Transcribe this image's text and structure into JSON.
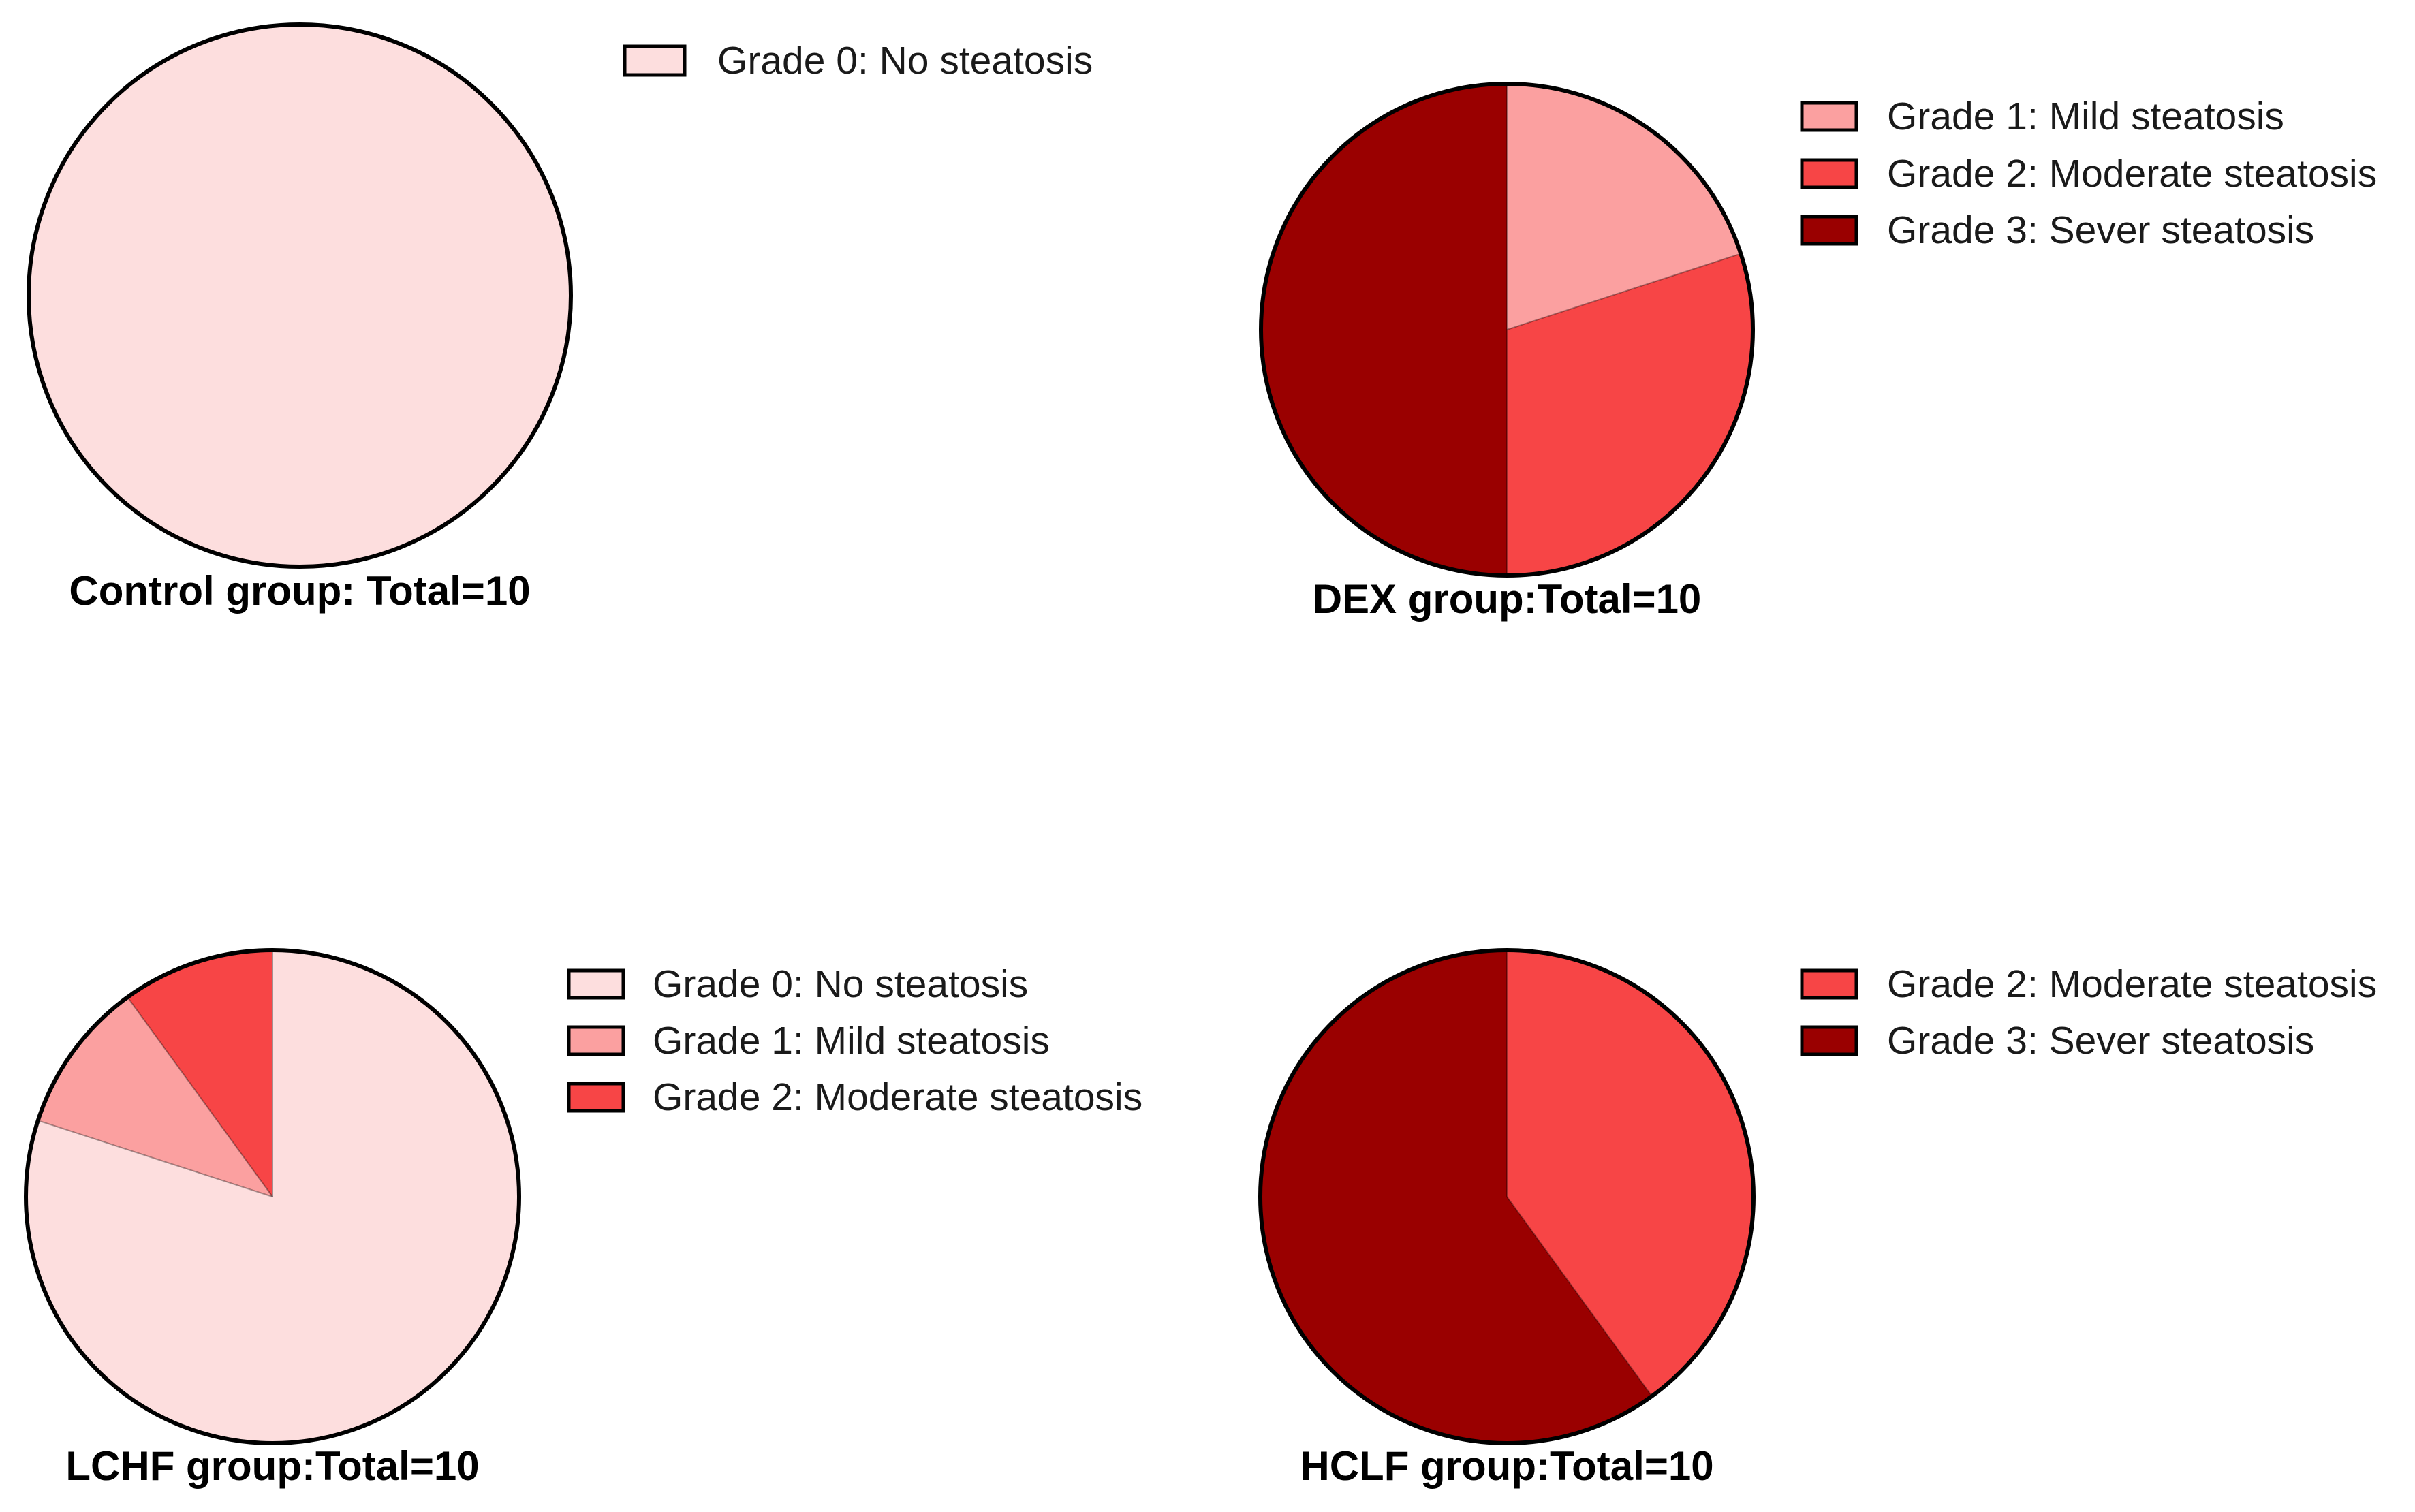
{
  "colors": {
    "grade0": "#FDDEDE",
    "grade1": "#FBA0A0",
    "grade2": "#F74546",
    "grade3": "#9A0000",
    "outline": "#000000"
  },
  "chart_data": [
    {
      "type": "pie",
      "title": "Control group: Total=10",
      "series": [
        {
          "name": "Grade  0: No steatosis",
          "grade": "grade0",
          "value": 10
        }
      ]
    },
    {
      "type": "pie",
      "title": "DEX group:Total=10",
      "series": [
        {
          "name": "Grade 1: Mild steatosis",
          "grade": "grade1",
          "value": 2
        },
        {
          "name": "Grade 2: Moderate steatosis",
          "grade": "grade2",
          "value": 3
        },
        {
          "name": "Grade 3: Sever steatosis",
          "grade": "grade3",
          "value": 5
        }
      ]
    },
    {
      "type": "pie",
      "title": "LCHF group:Total=10",
      "series": [
        {
          "name": "Grade 0: No steatosis",
          "grade": "grade0",
          "value": 8
        },
        {
          "name": "Grade 1: Mild steatosis",
          "grade": "grade1",
          "value": 1
        },
        {
          "name": "Grade 2: Moderate steatosis",
          "grade": "grade2",
          "value": 1
        }
      ]
    },
    {
      "type": "pie",
      "title": "HCLF group:Total=10",
      "series": [
        {
          "name": "Grade 2: Moderate steatosis",
          "grade": "grade2",
          "value": 4
        },
        {
          "name": "Grade 3: Sever steatosis",
          "grade": "grade3",
          "value": 6
        }
      ]
    }
  ]
}
